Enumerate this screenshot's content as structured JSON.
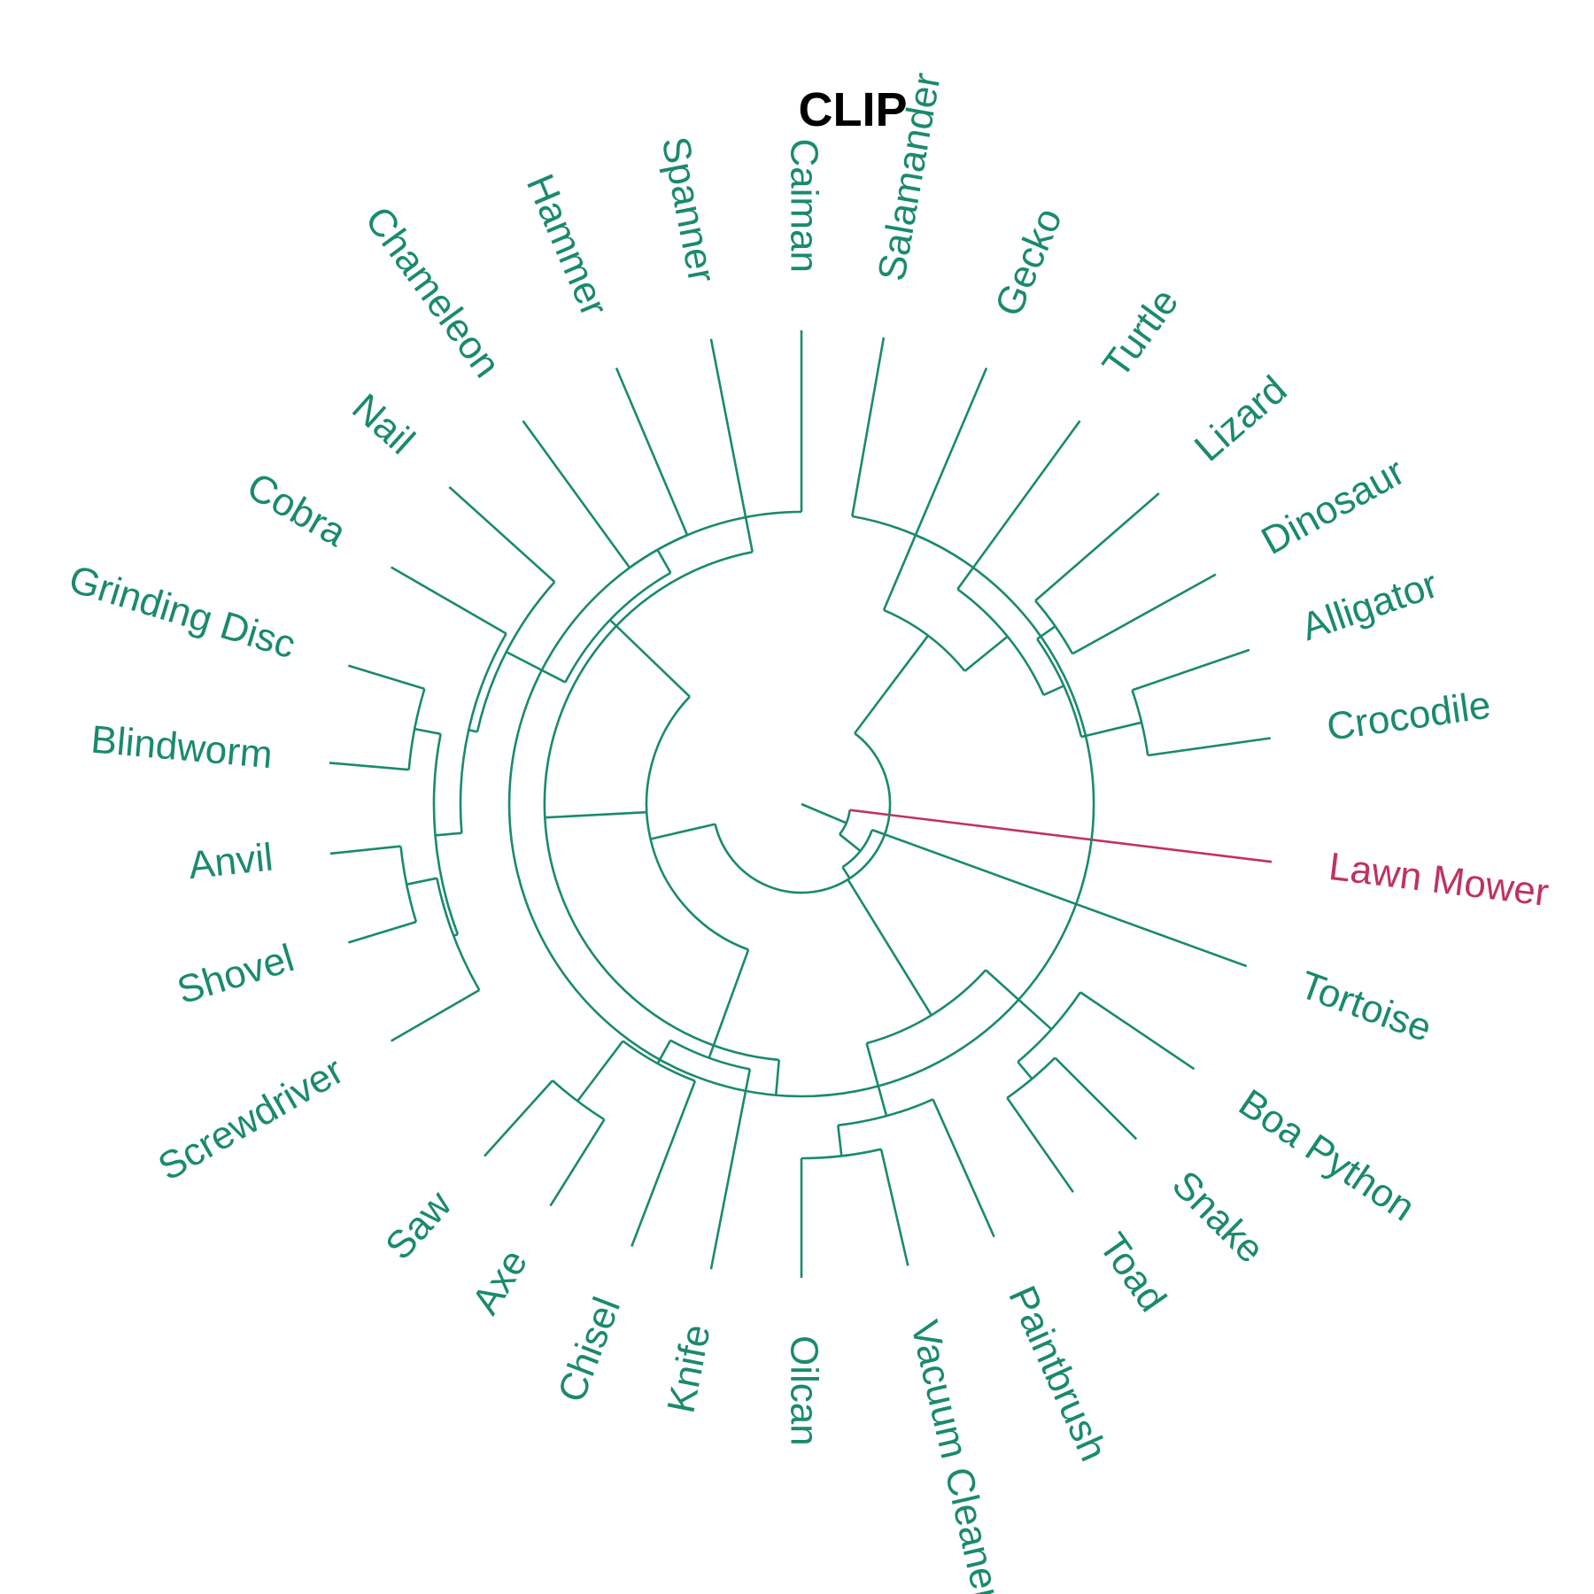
{
  "title": "CLIP",
  "colors": {
    "main": "#1a8a6e",
    "highlight": "#c0325f",
    "title": "#000000"
  },
  "leaves": [
    {
      "id": "salamander",
      "label": "Salamander"
    },
    {
      "id": "gecko",
      "label": "Gecko"
    },
    {
      "id": "turtle",
      "label": "Turtle"
    },
    {
      "id": "lizard",
      "label": "Lizard"
    },
    {
      "id": "dinosaur",
      "label": "Dinosaur"
    },
    {
      "id": "alligator",
      "label": "Alligator"
    },
    {
      "id": "crocodile",
      "label": "Crocodile"
    },
    {
      "id": "lawn-mower",
      "label": "Lawn Mower",
      "highlight": true
    },
    {
      "id": "tortoise",
      "label": "Tortoise"
    },
    {
      "id": "boa-python",
      "label": "Boa Python"
    },
    {
      "id": "snake",
      "label": "Snake"
    },
    {
      "id": "toad",
      "label": "Toad"
    },
    {
      "id": "paintbrush",
      "label": "Paintbrush"
    },
    {
      "id": "vacuum-cleaner",
      "label": "Vacuum Cleaner"
    },
    {
      "id": "oilcan",
      "label": "Oilcan"
    },
    {
      "id": "knife",
      "label": "Knife"
    },
    {
      "id": "chisel",
      "label": "Chisel"
    },
    {
      "id": "axe",
      "label": "Axe"
    },
    {
      "id": "saw",
      "label": "Saw"
    },
    {
      "id": "screwdriver",
      "label": "Screwdriver"
    },
    {
      "id": "shovel",
      "label": "Shovel"
    },
    {
      "id": "anvil",
      "label": "Anvil"
    },
    {
      "id": "blindworm",
      "label": "Blindworm"
    },
    {
      "id": "grinding-disc",
      "label": "Grinding Disc"
    },
    {
      "id": "cobra",
      "label": "Cobra"
    },
    {
      "id": "nail",
      "label": "Nail"
    },
    {
      "id": "chameleon",
      "label": "Chameleon"
    },
    {
      "id": "hammer",
      "label": "Hammer"
    },
    {
      "id": "spanner",
      "label": "Spanner"
    },
    {
      "id": "caiman",
      "label": "Caiman"
    }
  ]
}
